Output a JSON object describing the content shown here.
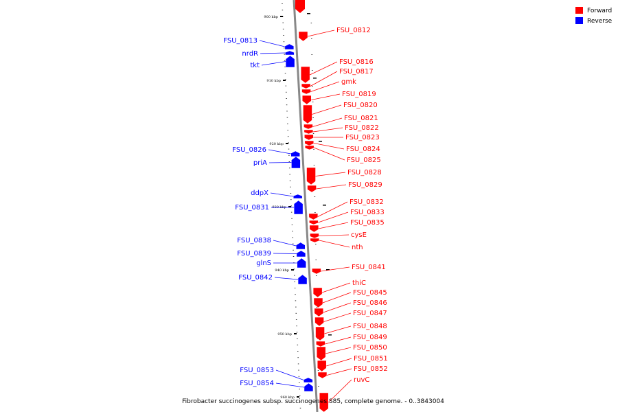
{
  "caption": "Fibrobacter succinogenes subsp. succinogenes S85, complete genome. - 0..3843004",
  "legend": [
    {
      "label": "Forward",
      "color": "#ff0000"
    },
    {
      "label": "Reverse",
      "color": "#0000ff"
    }
  ],
  "colors": {
    "forward": "#ff0000",
    "reverse": "#0000ff",
    "axis": "#888888"
  },
  "ticks": [
    "900 kbp",
    "910 kbp",
    "920 kbp",
    "930 kbp",
    "940 kbp",
    "950 kbp",
    "960 kbp"
  ],
  "genes": [
    {
      "label": "FSU_0812",
      "strand": "forward"
    },
    {
      "label": "FSU_0813",
      "strand": "reverse"
    },
    {
      "label": "nrdR",
      "strand": "reverse"
    },
    {
      "label": "tkt",
      "strand": "reverse"
    },
    {
      "label": "FSU_0816",
      "strand": "forward"
    },
    {
      "label": "FSU_0817",
      "strand": "forward"
    },
    {
      "label": "gmk",
      "strand": "forward"
    },
    {
      "label": "FSU_0819",
      "strand": "forward"
    },
    {
      "label": "FSU_0820",
      "strand": "forward"
    },
    {
      "label": "FSU_0821",
      "strand": "forward"
    },
    {
      "label": "FSU_0822",
      "strand": "forward"
    },
    {
      "label": "FSU_0823",
      "strand": "forward"
    },
    {
      "label": "FSU_0824",
      "strand": "forward"
    },
    {
      "label": "FSU_0825",
      "strand": "forward"
    },
    {
      "label": "FSU_0826",
      "strand": "reverse"
    },
    {
      "label": "priA",
      "strand": "reverse"
    },
    {
      "label": "FSU_0828",
      "strand": "forward"
    },
    {
      "label": "FSU_0829",
      "strand": "forward"
    },
    {
      "label": "ddpX",
      "strand": "reverse"
    },
    {
      "label": "FSU_0831",
      "strand": "reverse"
    },
    {
      "label": "FSU_0832",
      "strand": "forward"
    },
    {
      "label": "FSU_0833",
      "strand": "forward"
    },
    {
      "label": "FSU_0835",
      "strand": "forward"
    },
    {
      "label": "cysE",
      "strand": "forward"
    },
    {
      "label": "nth",
      "strand": "forward"
    },
    {
      "label": "FSU_0838",
      "strand": "reverse"
    },
    {
      "label": "FSU_0839",
      "strand": "reverse"
    },
    {
      "label": "glnS",
      "strand": "reverse"
    },
    {
      "label": "FSU_0841",
      "strand": "forward"
    },
    {
      "label": "FSU_0842",
      "strand": "reverse"
    },
    {
      "label": "thiC",
      "strand": "forward"
    },
    {
      "label": "FSU_0845",
      "strand": "forward"
    },
    {
      "label": "FSU_0846",
      "strand": "forward"
    },
    {
      "label": "FSU_0847",
      "strand": "forward"
    },
    {
      "label": "FSU_0848",
      "strand": "forward"
    },
    {
      "label": "FSU_0849",
      "strand": "forward"
    },
    {
      "label": "FSU_0850",
      "strand": "forward"
    },
    {
      "label": "FSU_0851",
      "strand": "forward"
    },
    {
      "label": "FSU_0852",
      "strand": "forward"
    },
    {
      "label": "FSU_0853",
      "strand": "reverse"
    },
    {
      "label": "FSU_0854",
      "strand": "reverse"
    },
    {
      "label": "ruvC",
      "strand": "forward"
    }
  ]
}
